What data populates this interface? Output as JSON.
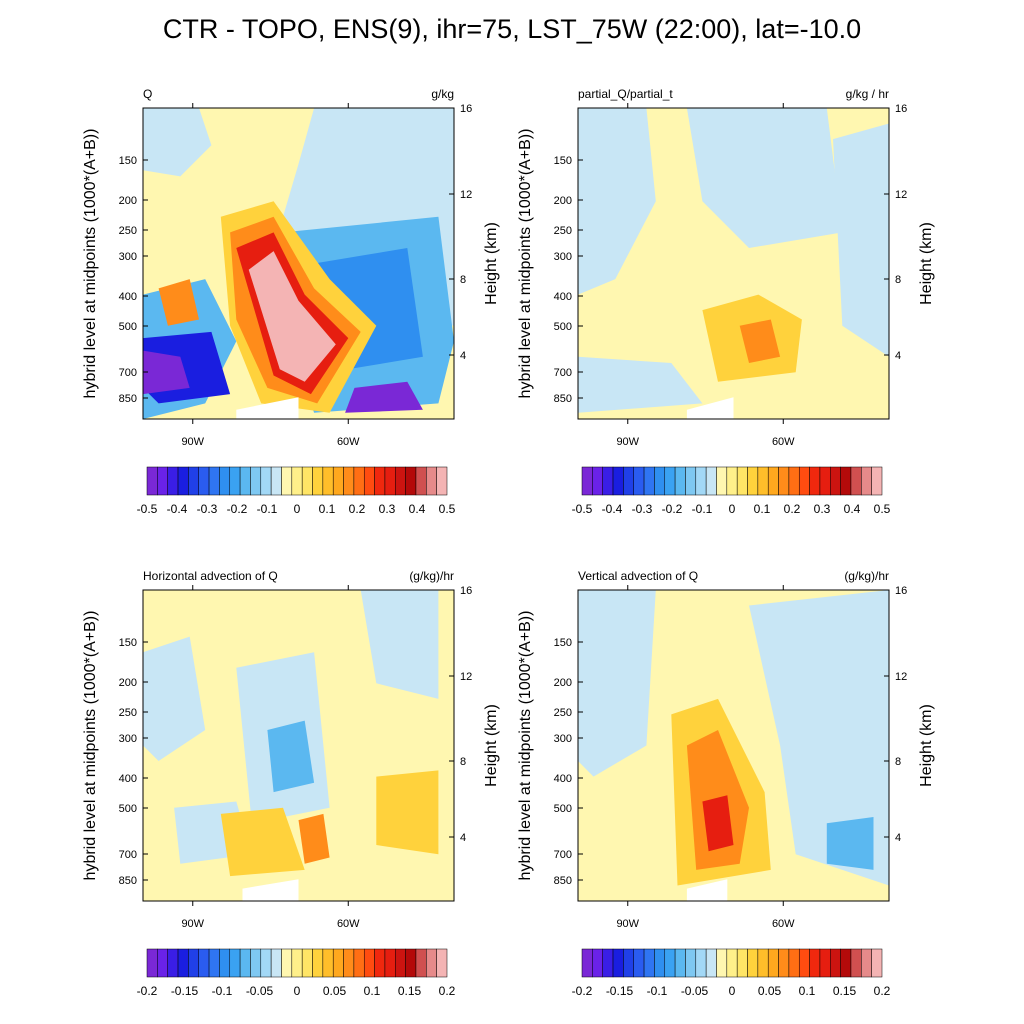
{
  "title": "CTR - TOPO, ENS(9), ihr=75, LST_75W (22:00), lat=-10.0",
  "colors": {
    "violet": "#7a28d6",
    "dark_blue": "#1a1ee0",
    "blue": "#2f8ff0",
    "sky": "#5bb8f0",
    "light_blue": "#c8e6f5",
    "light_yellow": "#fff7b0",
    "yellow": "#ffd23c",
    "orange": "#ff8c1a",
    "red": "#e61e10",
    "dark_red": "#b40a0a",
    "pink": "#f4b4b4",
    "terrain": "#ffffff"
  },
  "chart_data": [
    {
      "type": "heatmap",
      "title": "Q",
      "units": "g/kg",
      "ylabel": "hybrid level at midpoints (1000*(A+B))",
      "ylabel_right": "Height (km)",
      "x_ticks": [
        "90W",
        "60W"
      ],
      "y_ticks": [
        "150",
        "200",
        "250",
        "300",
        "400",
        "500",
        "700",
        "850"
      ],
      "y_right_ticks": [
        "16",
        "12",
        "8",
        "4"
      ],
      "colorbar_labels": [
        "-0.5",
        "-0.4",
        "-0.3",
        "-0.2",
        "-0.1",
        "0",
        "0.1",
        "0.2",
        "0.3",
        "0.4",
        "0.5"
      ],
      "color_range": [
        -0.5,
        0.5
      ]
    },
    {
      "type": "heatmap",
      "title": "partial_Q/partial_t",
      "units": "g/kg / hr",
      "ylabel": "hybrid level at midpoints (1000*(A+B))",
      "ylabel_right": "Height (km)",
      "x_ticks": [
        "90W",
        "60W"
      ],
      "y_ticks": [
        "150",
        "200",
        "250",
        "300",
        "400",
        "500",
        "700",
        "850"
      ],
      "y_right_ticks": [
        "16",
        "12",
        "8",
        "4"
      ],
      "colorbar_labels": [
        "-0.5",
        "-0.4",
        "-0.3",
        "-0.2",
        "-0.1",
        "0",
        "0.1",
        "0.2",
        "0.3",
        "0.4",
        "0.5"
      ],
      "color_range": [
        -0.5,
        0.5
      ]
    },
    {
      "type": "heatmap",
      "title": "Horizontal advection of Q",
      "units": "(g/kg)/hr",
      "ylabel": "hybrid level at midpoints (1000*(A+B))",
      "ylabel_right": "Height (km)",
      "x_ticks": [
        "90W",
        "60W"
      ],
      "y_ticks": [
        "150",
        "200",
        "250",
        "300",
        "400",
        "500",
        "700",
        "850"
      ],
      "y_right_ticks": [
        "16",
        "12",
        "8",
        "4"
      ],
      "colorbar_labels": [
        "-0.2",
        "-0.15",
        "-0.1",
        "-0.05",
        "0",
        "0.05",
        "0.1",
        "0.15",
        "0.2"
      ],
      "color_range": [
        -0.2,
        0.2
      ]
    },
    {
      "type": "heatmap",
      "title": "Vertical advection of Q",
      "units": "(g/kg)/hr",
      "ylabel": "hybrid level at midpoints (1000*(A+B))",
      "ylabel_right": "Height (km)",
      "x_ticks": [
        "90W",
        "60W"
      ],
      "y_ticks": [
        "150",
        "200",
        "250",
        "300",
        "400",
        "500",
        "700",
        "850"
      ],
      "y_right_ticks": [
        "16",
        "12",
        "8",
        "4"
      ],
      "colorbar_labels": [
        "-0.2",
        "-0.15",
        "-0.1",
        "-0.05",
        "0",
        "0.05",
        "0.1",
        "0.15",
        "0.2"
      ],
      "color_range": [
        -0.2,
        0.2
      ]
    }
  ]
}
